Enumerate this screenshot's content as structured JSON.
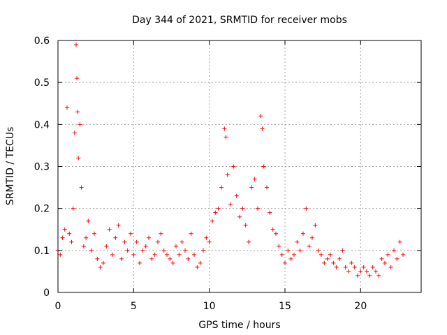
{
  "chart_data": {
    "type": "scatter",
    "title": "Day 344 of 2021, SRMTID for receiver mobs",
    "xlabel": "GPS time / hours",
    "ylabel": "SRMTID / TECUs",
    "xlim": [
      0,
      24
    ],
    "ylim": [
      0,
      0.6
    ],
    "xticks": [
      0,
      5,
      10,
      15,
      20
    ],
    "yticks": [
      0,
      0.1,
      0.2,
      0.3,
      0.4,
      0.5,
      0.6
    ],
    "xtick_labels": [
      "0",
      "5",
      "10",
      "15",
      "20"
    ],
    "ytick_labels": [
      "0",
      "0.1",
      "0.2",
      "0.3",
      "0.4",
      "0.5",
      "0.6"
    ],
    "grid": true,
    "marker": "+",
    "color": "#ff0000",
    "series": [
      {
        "name": "mobs",
        "x": [
          0.0,
          0.15,
          0.3,
          0.45,
          0.6,
          0.75,
          0.9,
          1.0,
          1.1,
          1.2,
          1.25,
          1.3,
          1.35,
          1.45,
          1.55,
          1.7,
          1.85,
          2.0,
          2.2,
          2.4,
          2.6,
          2.8,
          3.0,
          3.2,
          3.4,
          3.6,
          3.8,
          4.0,
          4.2,
          4.4,
          4.6,
          4.8,
          5.0,
          5.2,
          5.4,
          5.6,
          5.8,
          6.0,
          6.2,
          6.4,
          6.6,
          6.8,
          7.0,
          7.2,
          7.4,
          7.6,
          7.8,
          8.0,
          8.2,
          8.4,
          8.6,
          8.8,
          9.0,
          9.2,
          9.4,
          9.6,
          9.8,
          10.0,
          10.2,
          10.4,
          10.6,
          10.8,
          11.0,
          11.1,
          11.2,
          11.4,
          11.6,
          11.8,
          12.0,
          12.2,
          12.4,
          12.6,
          12.8,
          13.0,
          13.2,
          13.4,
          13.5,
          13.6,
          13.8,
          14.0,
          14.2,
          14.4,
          14.6,
          14.8,
          15.0,
          15.2,
          15.4,
          15.6,
          15.8,
          16.0,
          16.2,
          16.4,
          16.6,
          16.8,
          17.0,
          17.2,
          17.4,
          17.6,
          17.8,
          18.0,
          18.2,
          18.4,
          18.6,
          18.8,
          19.0,
          19.2,
          19.4,
          19.6,
          19.8,
          20.0,
          20.2,
          20.4,
          20.6,
          20.8,
          21.0,
          21.2,
          21.4,
          21.6,
          21.8,
          22.0,
          22.2,
          22.4,
          22.6,
          22.8
        ],
        "y": [
          0.1,
          0.09,
          0.13,
          0.15,
          0.44,
          0.14,
          0.12,
          0.2,
          0.38,
          0.59,
          0.51,
          0.43,
          0.32,
          0.4,
          0.25,
          0.11,
          0.13,
          0.17,
          0.1,
          0.14,
          0.08,
          0.06,
          0.07,
          0.11,
          0.15,
          0.09,
          0.13,
          0.16,
          0.08,
          0.12,
          0.1,
          0.14,
          0.09,
          0.12,
          0.07,
          0.1,
          0.11,
          0.13,
          0.08,
          0.09,
          0.12,
          0.14,
          0.1,
          0.09,
          0.08,
          0.07,
          0.11,
          0.09,
          0.12,
          0.1,
          0.08,
          0.14,
          0.09,
          0.06,
          0.07,
          0.1,
          0.13,
          0.12,
          0.17,
          0.19,
          0.2,
          0.25,
          0.39,
          0.37,
          0.28,
          0.21,
          0.3,
          0.23,
          0.18,
          0.2,
          0.16,
          0.12,
          0.25,
          0.27,
          0.2,
          0.42,
          0.39,
          0.3,
          0.25,
          0.19,
          0.15,
          0.14,
          0.11,
          0.09,
          0.07,
          0.1,
          0.08,
          0.09,
          0.12,
          0.1,
          0.14,
          0.2,
          0.11,
          0.13,
          0.16,
          0.1,
          0.09,
          0.07,
          0.08,
          0.09,
          0.07,
          0.06,
          0.08,
          0.1,
          0.06,
          0.05,
          0.07,
          0.06,
          0.04,
          0.05,
          0.06,
          0.05,
          0.04,
          0.06,
          0.05,
          0.04,
          0.08,
          0.07,
          0.09,
          0.06,
          0.1,
          0.08,
          0.12,
          0.09
        ]
      }
    ]
  }
}
